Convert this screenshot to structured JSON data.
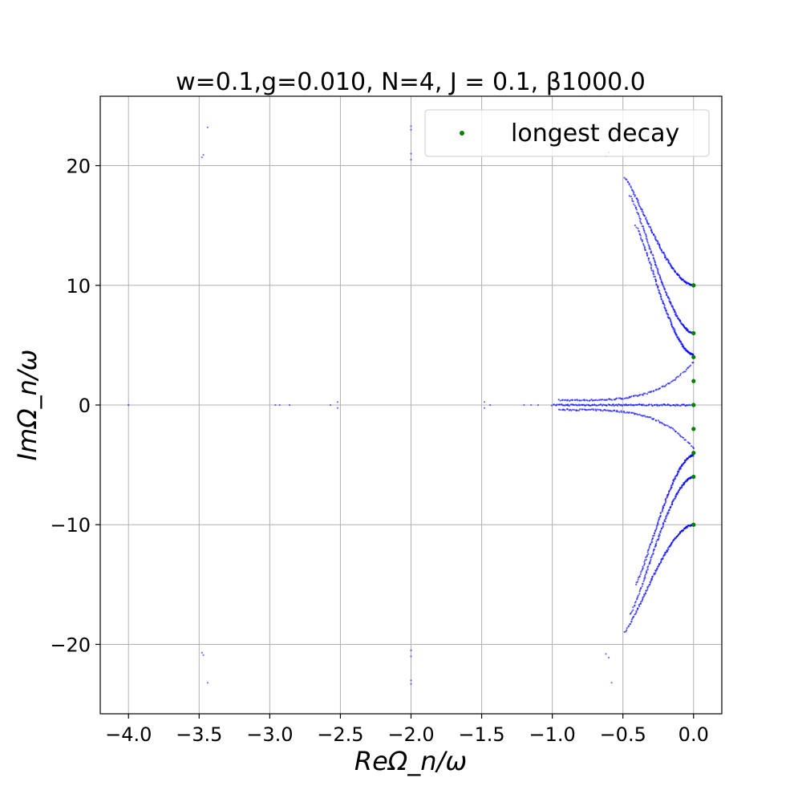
{
  "chart_data": {
    "type": "scatter",
    "title": "w=0.1,g=0.010, N=4, J = 0.1, β1000.0",
    "xlabel": "ReΩ_n/ω",
    "ylabel": "ImΩ_n/ω",
    "xlim": [
      -4.2,
      0.2
    ],
    "ylim": [
      -25.8,
      25.8
    ],
    "grid": true,
    "legend_position": "top-right",
    "x_ticks": [
      -4.0,
      -3.5,
      -3.0,
      -2.5,
      -2.0,
      -1.5,
      -1.0,
      -0.5,
      0.0
    ],
    "x_tick_labels": [
      "−4.0",
      "−3.5",
      "−3.0",
      "−2.5",
      "−2.0",
      "−1.5",
      "−1.0",
      "−0.5",
      "0.0"
    ],
    "y_ticks": [
      -20,
      -10,
      0,
      10,
      20
    ],
    "y_tick_labels": [
      "−20",
      "−10",
      "0",
      "10",
      "20"
    ],
    "series": [
      {
        "name": "",
        "color": "#0000ff",
        "points": [
          [
            -3.48,
            20.7
          ],
          [
            -3.47,
            20.9
          ],
          [
            -3.44,
            23.2
          ],
          [
            -3.48,
            -20.7
          ],
          [
            -3.47,
            -20.9
          ],
          [
            -3.44,
            -23.2
          ],
          [
            -2.0,
            20.5
          ],
          [
            -2.0,
            21.0
          ],
          [
            -2.0,
            23.0
          ],
          [
            -2.0,
            23.3
          ],
          [
            -2.0,
            -20.5
          ],
          [
            -2.0,
            -21.0
          ],
          [
            -2.0,
            -23.0
          ],
          [
            -2.0,
            -23.3
          ],
          [
            -0.62,
            20.8
          ],
          [
            -0.6,
            21.1
          ],
          [
            -0.58,
            23.2
          ],
          [
            -0.62,
            -20.8
          ],
          [
            -0.6,
            -21.1
          ],
          [
            -0.58,
            -23.2
          ],
          [
            -2.57,
            0.0
          ],
          [
            -2.52,
            0.25
          ],
          [
            -2.52,
            -0.25
          ],
          [
            -1.48,
            0.25
          ],
          [
            -1.48,
            -0.25
          ],
          [
            -1.44,
            0.0
          ],
          [
            -2.96,
            0.0
          ],
          [
            -2.93,
            0.0
          ],
          [
            -2.86,
            0.0
          ],
          [
            -4.0,
            0.0
          ],
          [
            -1.2,
            0.0
          ],
          [
            -1.15,
            0.0
          ],
          [
            -1.1,
            0.0
          ]
        ],
        "curves": [
          {
            "from": [
              -0.95,
              0.4
            ],
            "to": [
              0.0,
              3.6
            ],
            "shape": "hyperbolic",
            "count": 110
          },
          {
            "from": [
              -0.95,
              -0.4
            ],
            "to": [
              0.0,
              -3.6
            ],
            "shape": "hyperbolic",
            "count": 110
          },
          {
            "from": [
              -1.0,
              0.0
            ],
            "to": [
              0.0,
              0.0
            ],
            "shape": "line",
            "count": 140
          },
          {
            "from": [
              -0.49,
              19.0
            ],
            "to": [
              0.0,
              10.0
            ],
            "shape": "concave",
            "count": 150
          },
          {
            "from": [
              -0.45,
              17.5
            ],
            "to": [
              0.0,
              6.0
            ],
            "shape": "concave",
            "count": 150
          },
          {
            "from": [
              -0.41,
              15.0
            ],
            "to": [
              0.0,
              4.2
            ],
            "shape": "concave",
            "count": 150
          },
          {
            "from": [
              -0.49,
              -19.0
            ],
            "to": [
              0.0,
              -10.0
            ],
            "shape": "concave",
            "count": 150
          },
          {
            "from": [
              -0.45,
              -17.5
            ],
            "to": [
              0.0,
              -6.0
            ],
            "shape": "concave",
            "count": 150
          },
          {
            "from": [
              -0.41,
              -15.0
            ],
            "to": [
              0.0,
              -4.2
            ],
            "shape": "concave",
            "count": 150
          }
        ]
      },
      {
        "name": "longest decay",
        "color": "#008000",
        "points": [
          [
            0.0,
            10.0
          ],
          [
            0.0,
            6.0
          ],
          [
            0.0,
            4.0
          ],
          [
            0.0,
            2.0
          ],
          [
            0.0,
            0.0
          ],
          [
            0.0,
            -2.0
          ],
          [
            0.0,
            -4.0
          ],
          [
            0.0,
            -6.0
          ],
          [
            0.0,
            -10.0
          ]
        ]
      }
    ]
  }
}
